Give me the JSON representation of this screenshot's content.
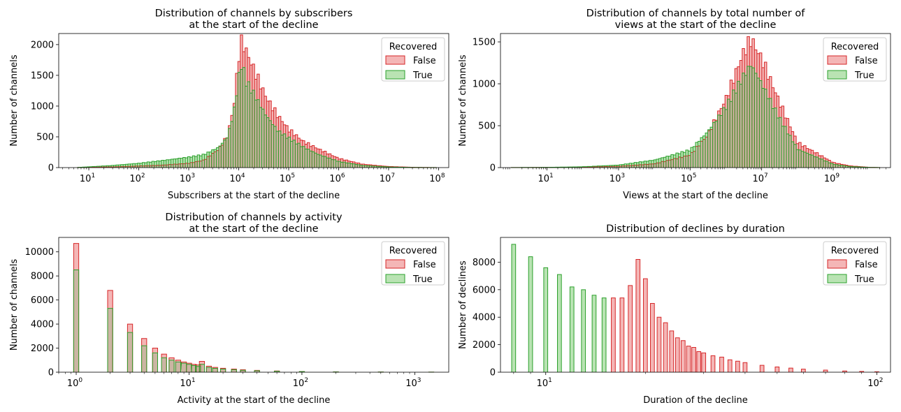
{
  "legend": {
    "title": "Recovered",
    "entries": [
      "False",
      "True"
    ]
  },
  "colors": {
    "false_line": "#d62728",
    "false_fill": "#f4b6b6",
    "true_line": "#2ca02c",
    "true_fill": "#b9e3b3",
    "overlap_fill": "#cbb5a3",
    "overlap_line": "#6b7a3a"
  },
  "chart_data": [
    {
      "type": "histogram",
      "title": "Distribution of channels by subscribers\nat the start of the decline",
      "xlabel": "Subscribers at the start of the decline",
      "ylabel": "Number of channels",
      "xscale": "log",
      "xlim": [
        2.5,
        160000000.0
      ],
      "ylim": [
        0,
        2180
      ],
      "x_tick_labels": [
        "10^1",
        "10^2",
        "10^3",
        "10^4",
        "10^5",
        "10^6",
        "10^7",
        "10^8"
      ],
      "y_ticks": [
        0,
        500,
        1000,
        1500,
        2000
      ],
      "legend_loc": "upper right",
      "series": [
        {
          "name": "False",
          "points": [
            [
              6,
              2
            ],
            [
              10,
              5
            ],
            [
              30,
              12
            ],
            [
              100,
              25
            ],
            [
              300,
              40
            ],
            [
              1000,
              70
            ],
            [
              2000,
              120
            ],
            [
              4000,
              300
            ],
            [
              6000,
              520
            ],
            [
              8000,
              1000
            ],
            [
              10000,
              1800
            ],
            [
              11500,
              2060
            ],
            [
              14000,
              1900
            ],
            [
              20000,
              1600
            ],
            [
              35000,
              1150
            ],
            [
              60000,
              850
            ],
            [
              100000,
              620
            ],
            [
              200000,
              420
            ],
            [
              400000,
              300
            ],
            [
              1000000,
              150
            ],
            [
              3000000,
              55
            ],
            [
              10000000,
              18
            ],
            [
              30000000,
              5
            ],
            [
              90000000,
              1
            ]
          ]
        },
        {
          "name": "True",
          "points": [
            [
              6,
              3
            ],
            [
              10,
              12
            ],
            [
              30,
              35
            ],
            [
              100,
              70
            ],
            [
              300,
              115
            ],
            [
              1000,
              170
            ],
            [
              2000,
              210
            ],
            [
              4000,
              330
            ],
            [
              6000,
              500
            ],
            [
              8000,
              900
            ],
            [
              10000,
              1450
            ],
            [
              11500,
              1700
            ],
            [
              14000,
              1400
            ],
            [
              20000,
              1200
            ],
            [
              35000,
              850
            ],
            [
              60000,
              600
            ],
            [
              100000,
              480
            ],
            [
              200000,
              330
            ],
            [
              400000,
              210
            ],
            [
              1000000,
              100
            ],
            [
              3000000,
              35
            ],
            [
              10000000,
              10
            ],
            [
              30000000,
              3
            ],
            [
              90000000,
              1
            ]
          ]
        }
      ]
    },
    {
      "type": "histogram",
      "title": "Distribution of channels by total number of\nviews at the start of the decline",
      "xlabel": "Views at the start of the decline",
      "ylabel": "Number of channels",
      "xscale": "log",
      "xlim": [
        0.5,
        40000000000.0
      ],
      "ylim": [
        0,
        1600
      ],
      "x_tick_labels": [
        "10^1",
        "10^3",
        "10^5",
        "10^7",
        "10^9"
      ],
      "y_ticks": [
        0,
        500,
        1000,
        1500
      ],
      "legend_loc": "upper right",
      "series": [
        {
          "name": "False",
          "points": [
            [
              1,
              1
            ],
            [
              10,
              2
            ],
            [
              100,
              6
            ],
            [
              1000,
              15
            ],
            [
              10000,
              45
            ],
            [
              100000,
              150
            ],
            [
              300000,
              380
            ],
            [
              1000000,
              820
            ],
            [
              3000000,
              1360
            ],
            [
              5000000,
              1530
            ],
            [
              10000000,
              1300
            ],
            [
              30000000,
              800
            ],
            [
              100000000,
              300
            ],
            [
              1000000000,
              60
            ],
            [
              3000000000,
              20
            ],
            [
              10000000000,
              4
            ],
            [
              20000000000,
              1
            ]
          ]
        },
        {
          "name": "True",
          "points": [
            [
              1,
              1
            ],
            [
              10,
              3
            ],
            [
              100,
              10
            ],
            [
              1000,
              30
            ],
            [
              10000,
              90
            ],
            [
              100000,
              210
            ],
            [
              300000,
              420
            ],
            [
              1000000,
              720
            ],
            [
              3000000,
              1080
            ],
            [
              5000000,
              1230
            ],
            [
              10000000,
              1000
            ],
            [
              30000000,
              600
            ],
            [
              100000000,
              220
            ],
            [
              1000000000,
              40
            ],
            [
              3000000000,
              12
            ],
            [
              10000000000,
              3
            ],
            [
              20000000000,
              1
            ]
          ]
        }
      ]
    },
    {
      "type": "histogram",
      "title": "Distribution of channels by activity\nat the start of the decline",
      "xlabel": "Activity at the start of the decline",
      "ylabel": "Number of channels",
      "xscale": "log",
      "xlim": [
        0.7,
        2000
      ],
      "ylim": [
        0,
        11200
      ],
      "x_tick_labels": [
        "10^0",
        "10^1",
        "10^2",
        "10^3"
      ],
      "y_ticks": [
        0,
        2000,
        4000,
        6000,
        8000,
        10000
      ],
      "legend_loc": "upper right",
      "series": [
        {
          "name": "False",
          "bars": [
            [
              1,
              10700
            ],
            [
              2,
              6800
            ],
            [
              3,
              4000
            ],
            [
              4,
              2800
            ],
            [
              5,
              2000
            ],
            [
              6,
              1500
            ],
            [
              7,
              1200
            ],
            [
              8,
              1000
            ],
            [
              9,
              850
            ],
            [
              10,
              750
            ],
            [
              11,
              650
            ],
            [
              12,
              600
            ],
            [
              13,
              900
            ],
            [
              15,
              500
            ],
            [
              17,
              400
            ],
            [
              20,
              330
            ],
            [
              25,
              260
            ],
            [
              30,
              200
            ],
            [
              40,
              150
            ],
            [
              60,
              100
            ],
            [
              100,
              60
            ],
            [
              200,
              30
            ],
            [
              500,
              15
            ],
            [
              1400,
              5
            ]
          ]
        },
        {
          "name": "True",
          "bars": [
            [
              1,
              8500
            ],
            [
              2,
              5300
            ],
            [
              3,
              3300
            ],
            [
              4,
              2200
            ],
            [
              5,
              1600
            ],
            [
              6,
              1200
            ],
            [
              7,
              1000
            ],
            [
              8,
              850
            ],
            [
              9,
              750
            ],
            [
              10,
              650
            ],
            [
              11,
              550
            ],
            [
              12,
              480
            ],
            [
              13,
              650
            ],
            [
              15,
              400
            ],
            [
              17,
              320
            ],
            [
              20,
              260
            ],
            [
              25,
              210
            ],
            [
              30,
              160
            ],
            [
              40,
              120
            ],
            [
              60,
              80
            ],
            [
              100,
              50
            ],
            [
              200,
              25
            ],
            [
              500,
              12
            ],
            [
              1400,
              4
            ]
          ]
        }
      ]
    },
    {
      "type": "histogram",
      "title": "Distribution of declines by duration",
      "xlabel": "Duration of the decline",
      "ylabel": "Number of declines",
      "xscale": "log",
      "xlim": [
        7.3,
        110
      ],
      "ylim": [
        0,
        9800
      ],
      "x_tick_labels": [
        "10^1",
        "10^2"
      ],
      "y_ticks": [
        0,
        2000,
        4000,
        6000,
        8000
      ],
      "legend_loc": "upper right",
      "series": [
        {
          "name": "False",
          "bars": [
            [
              16,
              5400
            ],
            [
              17,
              5400
            ],
            [
              18,
              6300
            ],
            [
              19,
              8200
            ],
            [
              20,
              6800
            ],
            [
              21,
              5000
            ],
            [
              22,
              4000
            ],
            [
              23,
              3600
            ],
            [
              24,
              3000
            ],
            [
              25,
              2500
            ],
            [
              26,
              2300
            ],
            [
              27,
              1900
            ],
            [
              28,
              1800
            ],
            [
              29,
              1500
            ],
            [
              30,
              1400
            ],
            [
              32,
              1200
            ],
            [
              34,
              1100
            ],
            [
              36,
              900
            ],
            [
              38,
              800
            ],
            [
              40,
              700
            ],
            [
              45,
              500
            ],
            [
              50,
              380
            ],
            [
              55,
              300
            ],
            [
              60,
              220
            ],
            [
              70,
              150
            ],
            [
              80,
              90
            ],
            [
              90,
              60
            ],
            [
              100,
              30
            ]
          ]
        },
        {
          "name": "True",
          "bars": [
            [
              8,
              9300
            ],
            [
              9,
              8400
            ],
            [
              10,
              7600
            ],
            [
              11,
              7100
            ],
            [
              12,
              6200
            ],
            [
              13,
              6000
            ],
            [
              14,
              5600
            ],
            [
              15,
              5400
            ]
          ]
        }
      ]
    }
  ]
}
